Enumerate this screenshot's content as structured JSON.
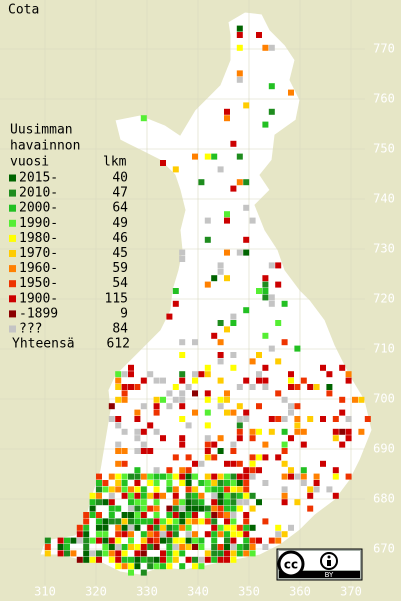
{
  "map": {
    "title": "Cota",
    "legend": {
      "heading": [
        "Uusimman",
        "havainnon",
        "vuosi"
      ],
      "count_heading": "lkm",
      "items": [
        {
          "label": "2015-",
          "color": "#006400",
          "count": 40
        },
        {
          "label": "2010-",
          "color": "#1e8c1e",
          "count": 47
        },
        {
          "label": "2000-",
          "color": "#22c022",
          "count": 64
        },
        {
          "label": "1990-",
          "color": "#55ee33",
          "count": 49
        },
        {
          "label": "1980-",
          "color": "#ffff00",
          "count": 46
        },
        {
          "label": "1970-",
          "color": "#ffcc00",
          "count": 45
        },
        {
          "label": "1960-",
          "color": "#ff8000",
          "count": 59
        },
        {
          "label": "1950-",
          "color": "#ee3300",
          "count": 54
        },
        {
          "label": "1900-",
          "color": "#cc0000",
          "count": 115
        },
        {
          "label": "-1899",
          "color": "#8b0000",
          "count": 9
        },
        {
          "label": "???",
          "color": "#c4c4c4",
          "count": 84
        }
      ],
      "total_label": "Yhteensä",
      "total": 612
    },
    "xticks": [
      310,
      320,
      330,
      340,
      350,
      360,
      370
    ],
    "yticks": [
      670,
      680,
      690,
      700,
      710,
      720,
      730,
      740,
      750,
      760,
      770
    ],
    "xlim": [
      301.2,
      379.5
    ],
    "ylim": [
      659.6,
      779.4
    ],
    "badge": {
      "cc": "cc",
      "by": "BY"
    }
  }
}
